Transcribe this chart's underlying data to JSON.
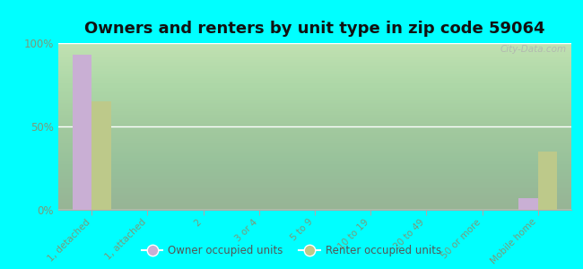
{
  "title": "Owners and renters by unit type in zip code 59064",
  "categories": [
    "1, detached",
    "1, attached",
    "2",
    "3 or 4",
    "5 to 9",
    "10 to 19",
    "20 to 49",
    "50 or more",
    "Mobile home"
  ],
  "owner_values": [
    93,
    0,
    0,
    0,
    0,
    0,
    0,
    0,
    7
  ],
  "renter_values": [
    65,
    0,
    0,
    0,
    0,
    0,
    0,
    0,
    35
  ],
  "owner_color": "#c9afd4",
  "renter_color": "#bdc98a",
  "background_color": "#00ffff",
  "yticks": [
    0,
    50,
    100
  ],
  "ylabels": [
    "0%",
    "50%",
    "100%"
  ],
  "bar_width": 0.35,
  "title_fontsize": 13,
  "watermark": "City-Data.com",
  "tick_label_color": "#7a9a7a",
  "legend_label_owner": "Owner occupied units",
  "legend_label_renter": "Renter occupied units"
}
